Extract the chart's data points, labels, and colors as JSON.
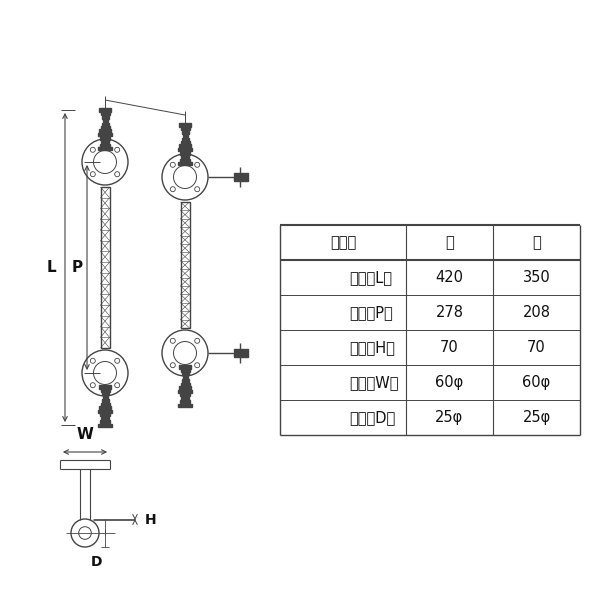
{
  "bg_color": "#ffffff",
  "table_header": [
    "サイズ",
    "大",
    "小"
  ],
  "table_rows": [
    [
      "全長（L）",
      "420",
      "350"
    ],
    [
      "足巾（P）",
      "278",
      "208"
    ],
    [
      "高サ（H）",
      "70",
      "70"
    ],
    [
      "座巾（W）",
      "60φ",
      "60φ"
    ],
    [
      "径　（D）",
      "25φ",
      "25φ"
    ]
  ],
  "line_color": "#444444",
  "drawing_color": "#444444",
  "label_color": "#111111",
  "font_size_table": 10.5,
  "font_size_label": 10
}
